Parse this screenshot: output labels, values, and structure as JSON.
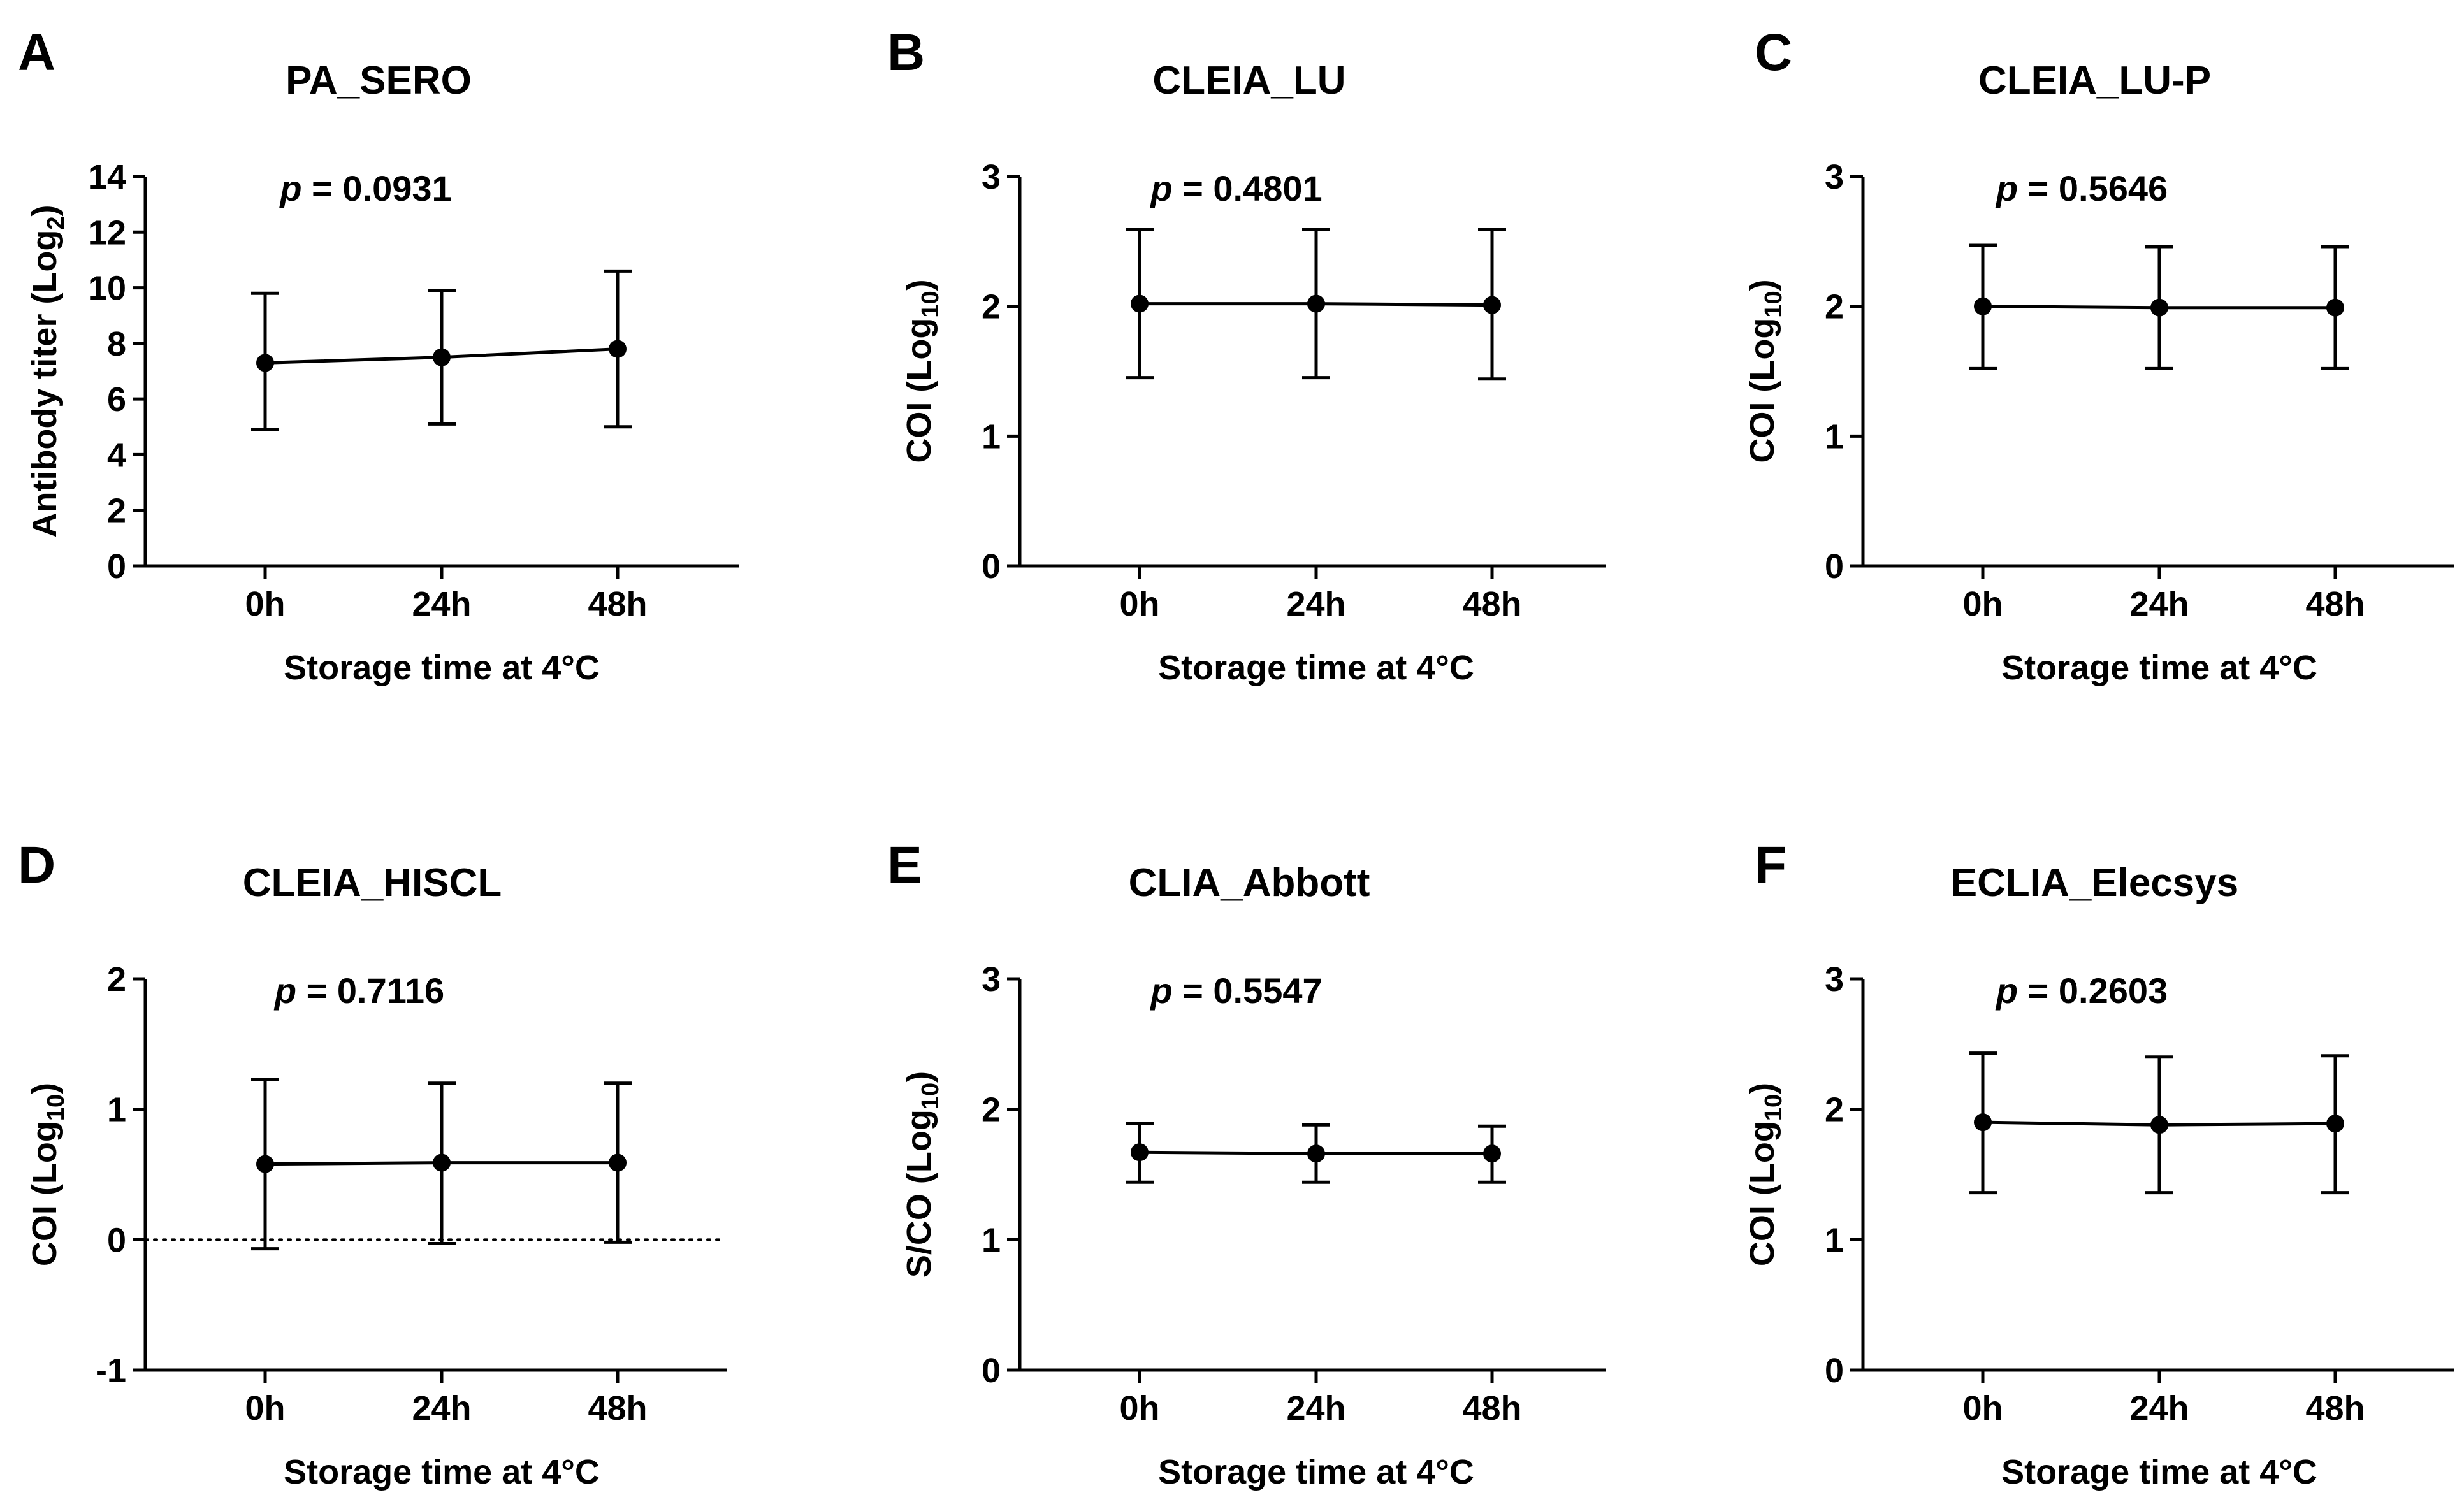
{
  "chart_data": [
    {
      "panel": "A",
      "type": "line",
      "title": "PA_SERO",
      "annotation_prefix": "p",
      "annotation_value": " = 0.0931",
      "xlabel": "Storage time at 4°C",
      "ylabel_main": "Antibody titer (Log",
      "ylabel_sub": "2",
      "ylabel_end": ")",
      "categories": [
        "0h",
        "24h",
        "48h"
      ],
      "ylim": [
        0,
        14
      ],
      "yticks": [
        0,
        2,
        4,
        6,
        8,
        10,
        12,
        14
      ],
      "values": [
        7.3,
        7.5,
        7.8
      ],
      "err_low": [
        4.9,
        5.1,
        5.0
      ],
      "err_high": [
        9.8,
        9.9,
        10.6
      ],
      "reference_line": null
    },
    {
      "panel": "B",
      "type": "line",
      "title": "CLEIA_LU",
      "annotation_prefix": "p",
      "annotation_value": " = 0.4801",
      "xlabel": "Storage time at 4°C",
      "ylabel_main": "COI (Log",
      "ylabel_sub": "10",
      "ylabel_end": ")",
      "categories": [
        "0h",
        "24h",
        "48h"
      ],
      "ylim": [
        0,
        3
      ],
      "yticks": [
        0,
        1,
        2,
        3
      ],
      "values": [
        2.02,
        2.02,
        2.01
      ],
      "err_low": [
        1.45,
        1.45,
        1.44
      ],
      "err_high": [
        2.59,
        2.59,
        2.59
      ],
      "reference_line": null
    },
    {
      "panel": "C",
      "type": "line",
      "title": "CLEIA_LU-P",
      "annotation_prefix": "p",
      "annotation_value": " = 0.5646",
      "xlabel": "Storage time at 4°C",
      "ylabel_main": "COI (Log",
      "ylabel_sub": "10",
      "ylabel_end": ")",
      "categories": [
        "0h",
        "24h",
        "48h"
      ],
      "ylim": [
        0,
        3
      ],
      "yticks": [
        0,
        1,
        2,
        3
      ],
      "values": [
        2.0,
        1.99,
        1.99
      ],
      "err_low": [
        1.52,
        1.52,
        1.52
      ],
      "err_high": [
        2.47,
        2.46,
        2.46
      ],
      "reference_line": null
    },
    {
      "panel": "D",
      "type": "line",
      "title": "CLEIA_HISCL",
      "annotation_prefix": "p",
      "annotation_value": " = 0.7116",
      "xlabel": "Storage time at 4°C",
      "ylabel_main": "COI (Log",
      "ylabel_sub": "10",
      "ylabel_end": ")",
      "categories": [
        "0h",
        "24h",
        "48h"
      ],
      "ylim": [
        -1,
        2
      ],
      "yticks": [
        -1,
        0,
        1,
        2
      ],
      "values": [
        0.58,
        0.59,
        0.59
      ],
      "err_low": [
        -0.07,
        -0.03,
        -0.02
      ],
      "err_high": [
        1.23,
        1.2,
        1.2
      ],
      "reference_line": 0
    },
    {
      "panel": "E",
      "type": "line",
      "title": "CLIA_Abbott",
      "annotation_prefix": "p",
      "annotation_value": " = 0.5547",
      "xlabel": "Storage time at 4°C",
      "ylabel_main": "S/CO (Log",
      "ylabel_sub": "10",
      "ylabel_end": ")",
      "categories": [
        "0h",
        "24h",
        "48h"
      ],
      "ylim": [
        0,
        3
      ],
      "yticks": [
        0,
        1,
        2,
        3
      ],
      "values": [
        1.67,
        1.66,
        1.66
      ],
      "err_low": [
        1.44,
        1.44,
        1.44
      ],
      "err_high": [
        1.89,
        1.88,
        1.87
      ],
      "reference_line": null
    },
    {
      "panel": "F",
      "type": "line",
      "title": "ECLIA_Elecsys",
      "annotation_prefix": "p",
      "annotation_value": " = 0.2603",
      "xlabel": "Storage time at 4°C",
      "ylabel_main": "COI (Log",
      "ylabel_sub": "10",
      "ylabel_end": ")",
      "categories": [
        "0h",
        "24h",
        "48h"
      ],
      "ylim": [
        0,
        3
      ],
      "yticks": [
        0,
        1,
        2,
        3
      ],
      "values": [
        1.9,
        1.88,
        1.89
      ],
      "err_low": [
        1.36,
        1.36,
        1.36
      ],
      "err_high": [
        2.43,
        2.4,
        2.41
      ],
      "reference_line": null
    }
  ]
}
